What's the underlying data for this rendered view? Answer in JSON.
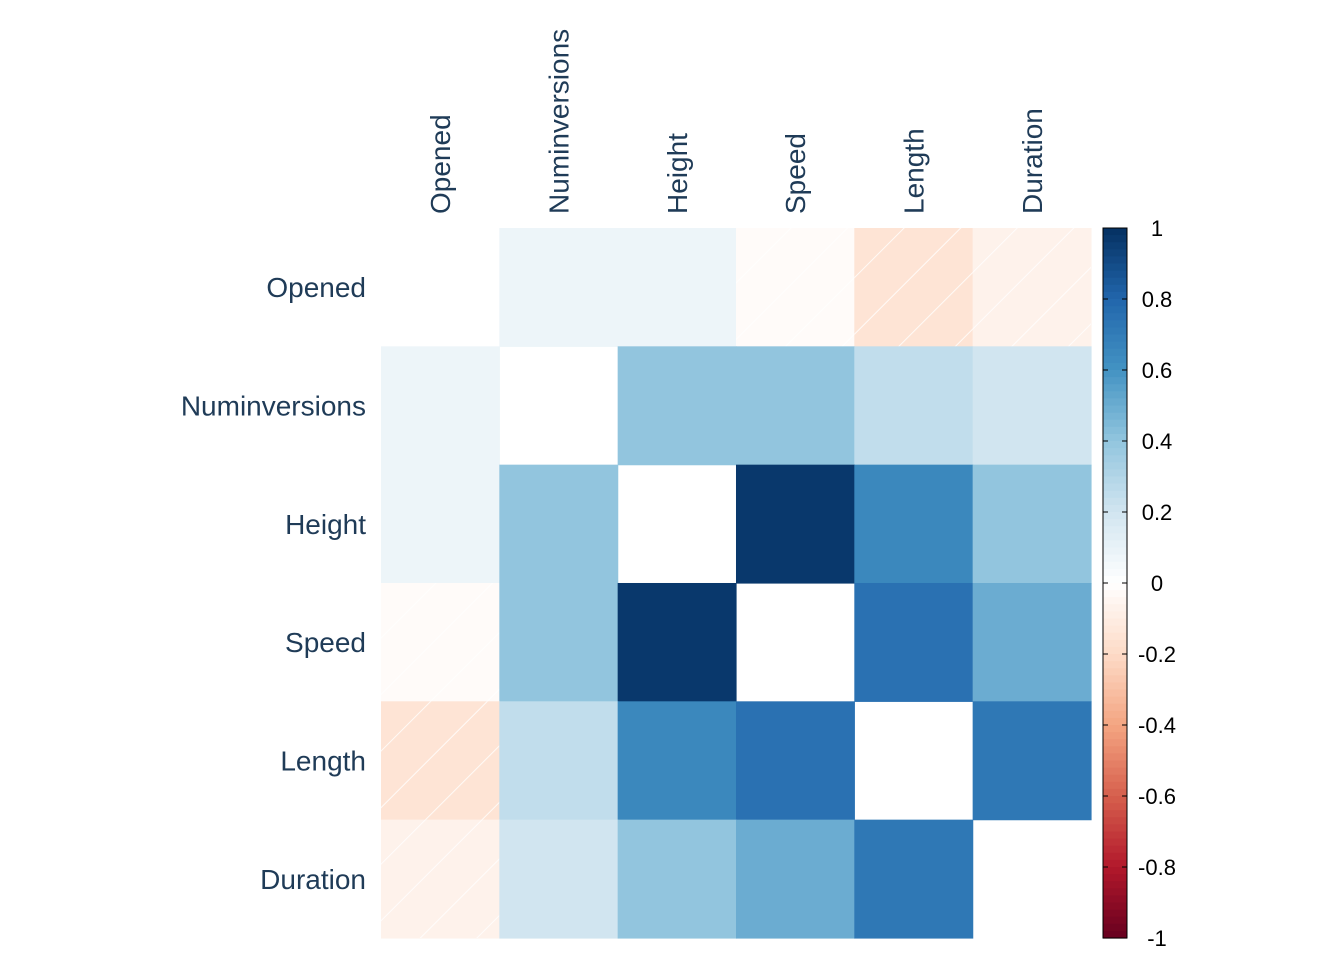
{
  "chart_data": {
    "type": "heatmap",
    "variables": [
      "Opened",
      "Numinversions",
      "Height",
      "Speed",
      "Length",
      "Duration"
    ],
    "correlation_matrix": [
      [
        null,
        0.08,
        0.08,
        -0.02,
        -0.15,
        -0.07
      ],
      [
        0.08,
        null,
        0.4,
        0.4,
        0.25,
        0.2
      ],
      [
        0.08,
        0.4,
        null,
        0.97,
        0.65,
        0.4
      ],
      [
        -0.02,
        0.4,
        0.97,
        null,
        0.75,
        0.5
      ],
      [
        -0.15,
        0.25,
        0.65,
        0.75,
        null,
        0.72
      ],
      [
        -0.07,
        0.2,
        0.4,
        0.5,
        0.72,
        null
      ]
    ],
    "color_scale": {
      "range": [
        -1,
        1
      ],
      "ticks": [
        "1",
        "0.8",
        "0.6",
        "0.4",
        "0.2",
        "0",
        "-0.2",
        "-0.4",
        "-0.6",
        "-0.8",
        "-1"
      ],
      "negative_hatch": true,
      "colors": {
        "-1": "#67001f",
        "-0.8": "#b2182b",
        "-0.6": "#d6604d",
        "-0.4": "#f4a582",
        "-0.2": "#fddbc7",
        "0": "#ffffff",
        "0.2": "#d1e5f0",
        "0.4": "#92c5de",
        "0.6": "#4393c3",
        "0.8": "#2166ac",
        "1": "#053061"
      }
    },
    "grid": false,
    "legend_placement": "right"
  }
}
